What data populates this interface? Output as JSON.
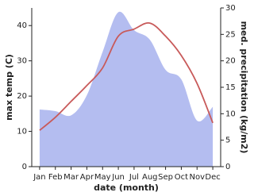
{
  "chart_data": {
    "type": "area-line",
    "x_label": "date (month)",
    "y_label": "max temp (C)",
    "y2_label": "med. precipitation (kg/m2)",
    "categories": [
      "Jan",
      "Feb",
      "Mar",
      "Apr",
      "May",
      "Jun",
      "Jul",
      "Aug",
      "Sep",
      "Oct",
      "Nov",
      "Dec"
    ],
    "series": [
      {
        "name": "max temp",
        "type": "line",
        "color": "#c85a5a",
        "values": [
          10.3,
          14,
          18.5,
          23,
          28,
          37,
          39,
          40.7,
          37,
          31.5,
          23.6,
          12.4
        ]
      },
      {
        "name": "med. precipitation",
        "type": "area",
        "axis": "y2",
        "color": "#b4bdf0",
        "values": [
          10.8,
          10.5,
          9.7,
          13.5,
          21.7,
          29.2,
          25.8,
          24,
          18.3,
          16.5,
          8.7,
          11.3
        ]
      }
    ],
    "ylim": [
      0,
      45
    ],
    "yticks": [
      0,
      10,
      20,
      30,
      40
    ],
    "y2lim": [
      0,
      30
    ],
    "y2ticks": [
      0,
      5,
      10,
      15,
      20,
      25,
      30
    ]
  }
}
